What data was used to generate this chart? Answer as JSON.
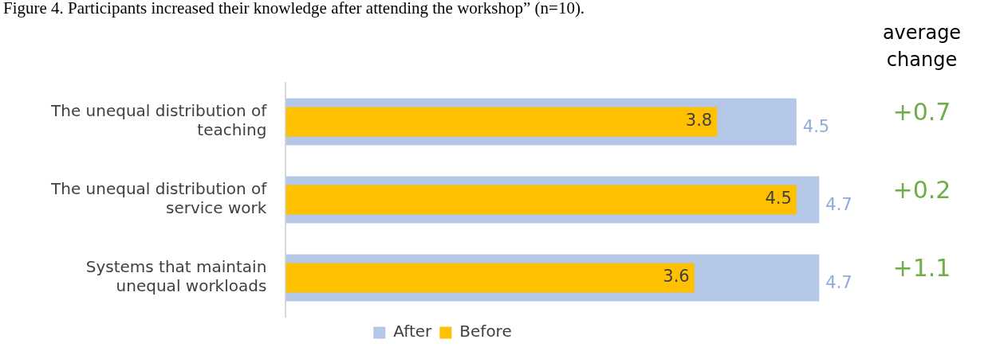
{
  "chart_data": {
    "type": "bar",
    "orientation": "horizontal",
    "title": "Figure 4. Participants increased their knowledge after attending the workshop” (n=10).",
    "categories": [
      "The unequal distribution of teaching",
      "The unequal distribution of service work",
      "Systems that maintain unequal workloads"
    ],
    "series": [
      {
        "name": "After",
        "color": "#b4c7e7",
        "values": [
          4.5,
          4.7,
          4.7
        ]
      },
      {
        "name": "Before",
        "color": "#ffc000",
        "values": [
          3.8,
          4.5,
          3.6
        ]
      }
    ],
    "data_labels": true,
    "grid": false,
    "legend": "bottom",
    "tick_labels": "y",
    "annotations": [
      "average change",
      "+0.7",
      "+0.2",
      "+1.1"
    ]
  }
}
